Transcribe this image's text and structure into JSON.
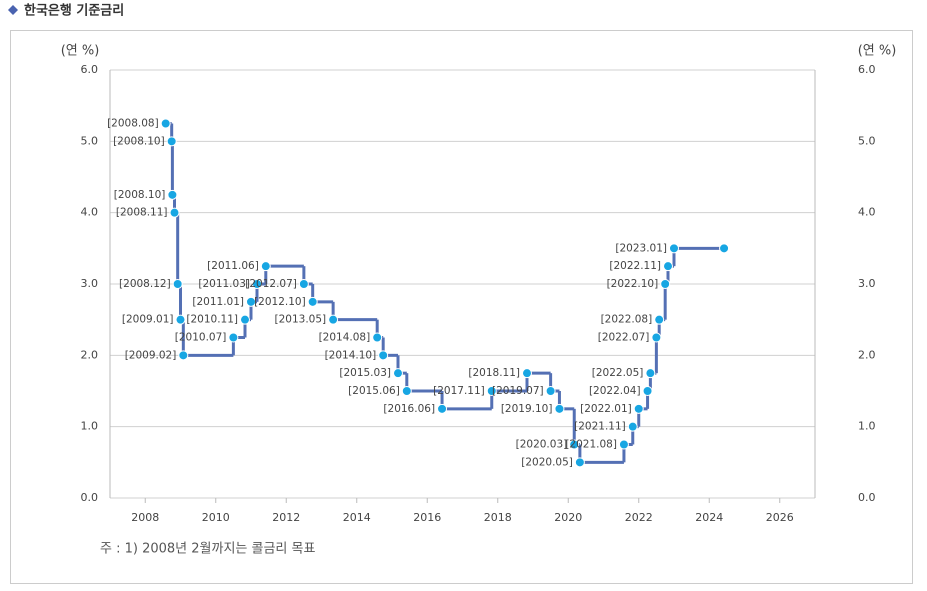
{
  "chart_data": {
    "type": "step-line",
    "title": "한국은행 기준금리",
    "y_label": "(연 %)",
    "y2_label": "(연 %)",
    "note": "주 : 1) 2008년 2월까지는 콜금리 목표",
    "x": [
      2008.58,
      2008.75,
      2008.77,
      2008.83,
      2008.92,
      2009.0,
      2009.08,
      2010.5,
      2010.83,
      2011.0,
      2011.17,
      2011.42,
      2012.5,
      2012.75,
      2013.33,
      2014.58,
      2014.75,
      2015.17,
      2015.42,
      2016.42,
      2017.83,
      2018.83,
      2019.5,
      2019.75,
      2020.17,
      2020.33,
      2021.58,
      2021.83,
      2022.0,
      2022.25,
      2022.33,
      2022.5,
      2022.58,
      2022.75,
      2022.83,
      2023.0,
      2024.42
    ],
    "values": [
      5.25,
      5.0,
      4.25,
      4.0,
      3.0,
      2.5,
      2.0,
      2.25,
      2.5,
      2.75,
      3.0,
      3.25,
      3.0,
      2.75,
      2.5,
      2.25,
      2.0,
      1.75,
      1.5,
      1.25,
      1.5,
      1.75,
      1.5,
      1.25,
      0.75,
      0.5,
      0.75,
      1.0,
      1.25,
      1.5,
      1.75,
      2.25,
      2.5,
      3.0,
      3.25,
      3.5,
      3.5
    ],
    "point_labels": [
      "[2008.08]",
      "[2008.10]",
      "[2008.10]",
      "[2008.11]",
      "[2008.12]",
      "[2009.01]",
      "[2009.02]",
      "[2010.07]",
      "[2010.11]",
      "[2011.01]",
      "[2011.03]",
      "[2011.06]",
      "[2012.07]",
      "[2012.10]",
      "[2013.05]",
      "[2014.08]",
      "[2014.10]",
      "[2015.03]",
      "[2015.06]",
      "[2016.06]",
      "[2017.11]",
      "[2018.11]",
      "[2019.07]",
      "[2019.10]",
      "[2020.03]",
      "[2020.05]",
      "[2021.08]",
      "[2021.11]",
      "[2022.01]",
      "[2022.04]",
      "[2022.05]",
      "[2022.07]",
      "[2022.08]",
      "[2022.10]",
      "[2022.11]",
      "[2023.01]",
      null
    ],
    "color": "#5470b4",
    "marker_color": "#17a6e3",
    "xlim": [
      2007,
      2027
    ],
    "xticks": [
      2008,
      2010,
      2012,
      2014,
      2016,
      2018,
      2020,
      2022,
      2024,
      2026
    ],
    "ylim": [
      0,
      6
    ],
    "yticks": [
      {
        "value": 0,
        "label": "0.0"
      },
      {
        "value": 1,
        "label": "1.0"
      },
      {
        "value": 2,
        "label": "2.0"
      },
      {
        "value": 3,
        "label": "3.0"
      },
      {
        "value": 4,
        "label": "4.0"
      },
      {
        "value": 5,
        "label": "5.0"
      },
      {
        "value": 6,
        "label": "6.0"
      }
    ],
    "y2lim": [
      0,
      6
    ],
    "y2ticks": [
      {
        "value": 0,
        "label": "0.0"
      },
      {
        "value": 1,
        "label": "1.0"
      },
      {
        "value": 2,
        "label": "2.0"
      },
      {
        "value": 3,
        "label": "3.0"
      },
      {
        "value": 4,
        "label": "4.0"
      },
      {
        "value": 5,
        "label": "5.0"
      },
      {
        "value": 6,
        "label": "6.0"
      }
    ],
    "grid": true
  }
}
